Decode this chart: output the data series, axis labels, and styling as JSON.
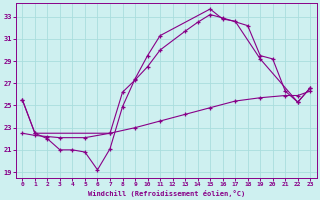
{
  "xlabel": "Windchill (Refroidissement éolien,°C)",
  "xlim": [
    -0.5,
    23.5
  ],
  "ylim": [
    18.5,
    34.2
  ],
  "xticks": [
    0,
    1,
    2,
    3,
    4,
    5,
    6,
    7,
    8,
    9,
    10,
    11,
    12,
    13,
    14,
    15,
    16,
    17,
    18,
    19,
    20,
    21,
    22,
    23
  ],
  "yticks": [
    19,
    21,
    23,
    25,
    27,
    29,
    31,
    33
  ],
  "bg_color": "#cef0f0",
  "line_color": "#880088",
  "grid_color": "#aadddd",
  "curve1_x": [
    0,
    1,
    2,
    3,
    4,
    5,
    6,
    7,
    8,
    9,
    10,
    11,
    15,
    16,
    17,
    19,
    22,
    23
  ],
  "curve1_y": [
    25.5,
    22.5,
    22.0,
    21.0,
    21.0,
    20.8,
    19.2,
    21.1,
    24.9,
    27.4,
    29.5,
    31.3,
    33.7,
    32.8,
    32.6,
    29.2,
    25.3,
    26.6
  ],
  "curve2_x": [
    0,
    1,
    7,
    8,
    9,
    10,
    11,
    13,
    14,
    15,
    16,
    18,
    19,
    20,
    21,
    22,
    23
  ],
  "curve2_y": [
    25.5,
    22.5,
    22.5,
    26.2,
    27.3,
    28.5,
    30.0,
    31.7,
    32.5,
    33.2,
    32.9,
    32.2,
    29.5,
    29.2,
    26.3,
    25.3,
    26.6
  ],
  "curve3_x": [
    0,
    1,
    2,
    3,
    5,
    7,
    9,
    11,
    13,
    15,
    17,
    19,
    21,
    22,
    23
  ],
  "curve3_y": [
    22.5,
    22.3,
    22.2,
    22.1,
    22.1,
    22.5,
    23.0,
    23.6,
    24.2,
    24.8,
    25.4,
    25.7,
    25.9,
    25.9,
    26.3
  ]
}
